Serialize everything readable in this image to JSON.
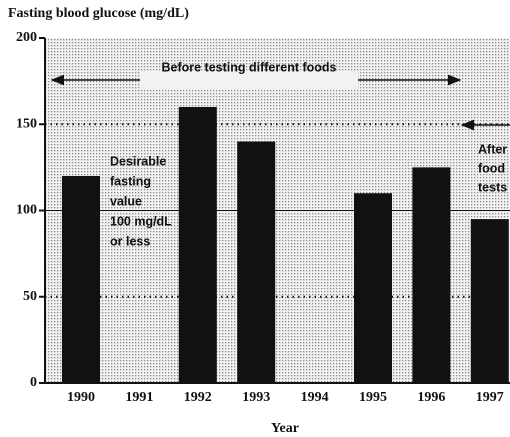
{
  "chart_data": {
    "type": "bar",
    "title": "Fasting blood glucose (mg/dL)",
    "x_label": "Year",
    "categories": [
      "1990",
      "1991",
      "1992",
      "1993",
      "1994",
      "1995",
      "1996",
      "1997"
    ],
    "values": [
      120,
      null,
      160,
      140,
      null,
      110,
      125,
      95
    ],
    "color": "#111111",
    "ylim": [
      0,
      200
    ],
    "yticks": [
      0,
      50,
      100,
      150,
      200
    ],
    "hlines": [
      {
        "value": 100,
        "style": "solid"
      },
      {
        "value": 150,
        "style": "dotted"
      },
      {
        "value": 50,
        "style": "dotted"
      }
    ],
    "annotations": {
      "before": "Before testing different foods",
      "desirable": [
        "Desirable",
        "fasting",
        "value",
        "100 mg/dL",
        "or less"
      ],
      "after": [
        "After",
        "food",
        "tests"
      ]
    }
  }
}
